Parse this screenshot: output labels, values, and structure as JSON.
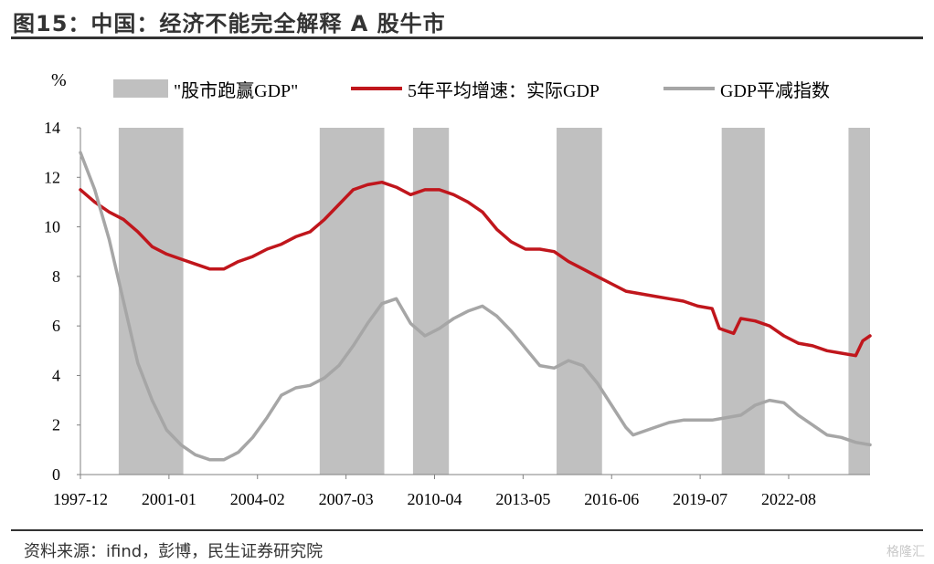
{
  "title": "图15：中国：经济不能完全解释 A 股牛市",
  "source": "资料来源：ifind，彭博，民生证券研究院",
  "watermark": "格隆汇",
  "chart_data": {
    "type": "line",
    "ylabel": "%",
    "ylim": [
      0,
      14
    ],
    "y_ticks": [
      "0",
      "2",
      "4",
      "6",
      "8",
      "10",
      "12",
      "14"
    ],
    "x_ticks": [
      "1997-12",
      "2001-01",
      "2004-02",
      "2007-03",
      "2010-04",
      "2013-05",
      "2016-06",
      "2019-07",
      "2022-08"
    ],
    "legend": {
      "position": "top",
      "items": [
        {
          "label": "\"股市跑赢GDP\"",
          "kind": "box",
          "color": "#c0c0c0"
        },
        {
          "label": "5年平均增速：实际GDP",
          "kind": "line",
          "color": "#c0161c"
        },
        {
          "label": "GDP平减指数",
          "kind": "line",
          "color": "#a6a6a6"
        }
      ]
    },
    "shaded_periods": [
      [
        "1999-04",
        "2001-07"
      ],
      [
        "2006-04",
        "2008-07"
      ],
      [
        "2009-07",
        "2010-10"
      ],
      [
        "2014-07",
        "2016-02"
      ],
      [
        "2020-04",
        "2021-10"
      ],
      [
        "2024-09",
        "2025-12"
      ]
    ],
    "series": [
      {
        "name": "5年平均增速：实际GDP",
        "color": "#c0161c",
        "points": [
          [
            "1997-12",
            11.5
          ],
          [
            "1998-06",
            11.0
          ],
          [
            "1998-12",
            10.6
          ],
          [
            "1999-06",
            10.3
          ],
          [
            "1999-12",
            9.8
          ],
          [
            "2000-06",
            9.2
          ],
          [
            "2000-12",
            8.9
          ],
          [
            "2001-06",
            8.7
          ],
          [
            "2001-12",
            8.5
          ],
          [
            "2002-06",
            8.3
          ],
          [
            "2002-12",
            8.3
          ],
          [
            "2003-06",
            8.6
          ],
          [
            "2003-12",
            8.8
          ],
          [
            "2004-06",
            9.1
          ],
          [
            "2004-12",
            9.3
          ],
          [
            "2005-06",
            9.6
          ],
          [
            "2005-12",
            9.8
          ],
          [
            "2006-06",
            10.3
          ],
          [
            "2006-12",
            10.9
          ],
          [
            "2007-06",
            11.5
          ],
          [
            "2007-12",
            11.7
          ],
          [
            "2008-06",
            11.8
          ],
          [
            "2008-12",
            11.6
          ],
          [
            "2009-06",
            11.3
          ],
          [
            "2009-12",
            11.5
          ],
          [
            "2010-06",
            11.5
          ],
          [
            "2010-12",
            11.3
          ],
          [
            "2011-06",
            11.0
          ],
          [
            "2011-12",
            10.6
          ],
          [
            "2012-06",
            9.9
          ],
          [
            "2012-12",
            9.4
          ],
          [
            "2013-06",
            9.1
          ],
          [
            "2013-12",
            9.1
          ],
          [
            "2014-06",
            9.0
          ],
          [
            "2014-12",
            8.6
          ],
          [
            "2015-06",
            8.3
          ],
          [
            "2015-12",
            8.0
          ],
          [
            "2016-06",
            7.7
          ],
          [
            "2016-12",
            7.4
          ],
          [
            "2017-06",
            7.3
          ],
          [
            "2017-12",
            7.2
          ],
          [
            "2018-06",
            7.1
          ],
          [
            "2018-12",
            7.0
          ],
          [
            "2019-06",
            6.8
          ],
          [
            "2019-12",
            6.7
          ],
          [
            "2020-03",
            5.9
          ],
          [
            "2020-06",
            5.8
          ],
          [
            "2020-09",
            5.7
          ],
          [
            "2020-12",
            6.3
          ],
          [
            "2021-06",
            6.2
          ],
          [
            "2021-12",
            6.0
          ],
          [
            "2022-06",
            5.6
          ],
          [
            "2022-12",
            5.3
          ],
          [
            "2023-06",
            5.2
          ],
          [
            "2023-12",
            5.0
          ],
          [
            "2024-06",
            4.9
          ],
          [
            "2024-12",
            4.8
          ],
          [
            "2025-03",
            5.4
          ],
          [
            "2025-06",
            5.6
          ]
        ]
      },
      {
        "name": "GDP平减指数",
        "color": "#a6a6a6",
        "points": [
          [
            "1997-12",
            13.0
          ],
          [
            "1998-06",
            11.5
          ],
          [
            "1998-12",
            9.5
          ],
          [
            "1999-06",
            7.0
          ],
          [
            "1999-12",
            4.5
          ],
          [
            "2000-06",
            3.0
          ],
          [
            "2000-12",
            1.8
          ],
          [
            "2001-06",
            1.2
          ],
          [
            "2001-12",
            0.8
          ],
          [
            "2002-06",
            0.6
          ],
          [
            "2002-12",
            0.6
          ],
          [
            "2003-06",
            0.9
          ],
          [
            "2003-12",
            1.5
          ],
          [
            "2004-06",
            2.3
          ],
          [
            "2004-12",
            3.2
          ],
          [
            "2005-06",
            3.5
          ],
          [
            "2005-12",
            3.6
          ],
          [
            "2006-06",
            3.9
          ],
          [
            "2006-12",
            4.4
          ],
          [
            "2007-06",
            5.2
          ],
          [
            "2007-12",
            6.1
          ],
          [
            "2008-06",
            6.9
          ],
          [
            "2008-12",
            7.1
          ],
          [
            "2009-06",
            6.1
          ],
          [
            "2009-12",
            5.6
          ],
          [
            "2010-06",
            5.9
          ],
          [
            "2010-12",
            6.3
          ],
          [
            "2011-06",
            6.6
          ],
          [
            "2011-12",
            6.8
          ],
          [
            "2012-06",
            6.4
          ],
          [
            "2012-12",
            5.8
          ],
          [
            "2013-06",
            5.1
          ],
          [
            "2013-12",
            4.4
          ],
          [
            "2014-06",
            4.3
          ],
          [
            "2014-12",
            4.6
          ],
          [
            "2015-06",
            4.4
          ],
          [
            "2015-12",
            3.7
          ],
          [
            "2016-06",
            2.8
          ],
          [
            "2016-12",
            1.9
          ],
          [
            "2017-03",
            1.6
          ],
          [
            "2017-06",
            1.7
          ],
          [
            "2017-12",
            1.9
          ],
          [
            "2018-06",
            2.1
          ],
          [
            "2018-12",
            2.2
          ],
          [
            "2019-06",
            2.2
          ],
          [
            "2019-12",
            2.2
          ],
          [
            "2020-06",
            2.3
          ],
          [
            "2020-12",
            2.4
          ],
          [
            "2021-06",
            2.8
          ],
          [
            "2021-12",
            3.0
          ],
          [
            "2022-06",
            2.9
          ],
          [
            "2022-12",
            2.4
          ],
          [
            "2023-06",
            2.0
          ],
          [
            "2023-12",
            1.6
          ],
          [
            "2024-06",
            1.5
          ],
          [
            "2024-12",
            1.3
          ],
          [
            "2025-06",
            1.2
          ]
        ]
      }
    ]
  }
}
